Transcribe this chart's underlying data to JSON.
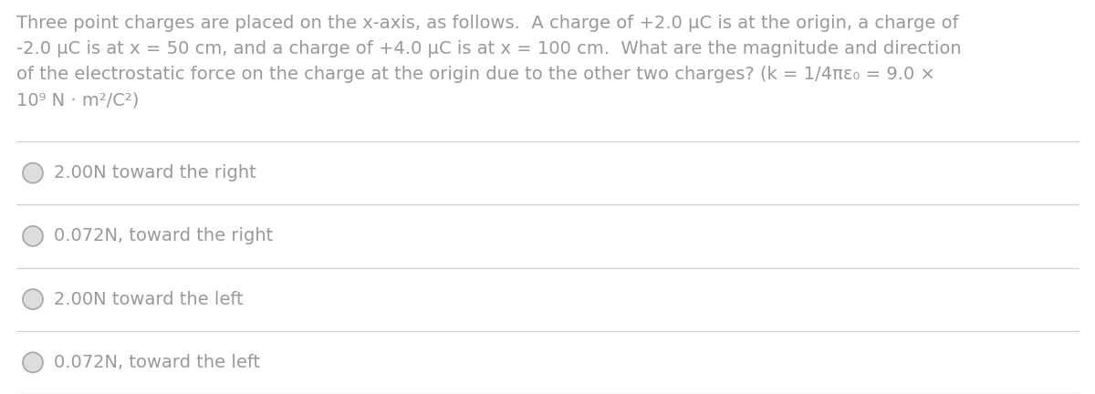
{
  "background_color": "#ffffff",
  "question_text_lines": [
    "Three point charges are placed on the x-axis, as follows.  A charge of +2.0 μC is at the origin, a charge of",
    "-2.0 μC is at x = 50 cm, and a charge of +4.0 μC is at x = 100 cm.  What are the magnitude and direction",
    "of the electrostatic force on the charge at the origin due to the other two charges? (k = 1/4πε₀ = 9.0 ×",
    "10⁹ N · m²/C²)"
  ],
  "options": [
    "2.00N toward the right",
    "0.072N, toward the right",
    "2.00N toward the left",
    "0.072N, toward the left"
  ],
  "text_color": "#999999",
  "line_color": "#d0d0d0",
  "font_size_question": 14.0,
  "font_size_options": 14.0,
  "circle_color": "#aaaaaa",
  "circle_fill": "#dddddd"
}
